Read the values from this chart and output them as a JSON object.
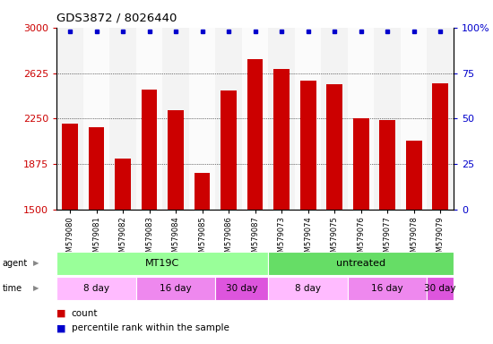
{
  "title": "GDS3872 / 8026440",
  "samples": [
    "GSM579080",
    "GSM579081",
    "GSM579082",
    "GSM579083",
    "GSM579084",
    "GSM579085",
    "GSM579086",
    "GSM579087",
    "GSM579073",
    "GSM579074",
    "GSM579075",
    "GSM579076",
    "GSM579077",
    "GSM579078",
    "GSM579079"
  ],
  "bar_values": [
    2210,
    2175,
    1920,
    2490,
    2320,
    1800,
    2480,
    2740,
    2660,
    2560,
    2530,
    2250,
    2240,
    2070,
    2540
  ],
  "ylim": [
    1500,
    3000
  ],
  "yticks": [
    1500,
    1875,
    2250,
    2625,
    3000
  ],
  "y2lim": [
    0,
    100
  ],
  "y2ticks": [
    0,
    25,
    50,
    75,
    100
  ],
  "bar_color": "#cc0000",
  "dot_color": "#0000cc",
  "bar_width": 0.6,
  "agents": [
    {
      "label": "MT19C",
      "start": 0,
      "end": 8,
      "color": "#99ff99"
    },
    {
      "label": "untreated",
      "start": 8,
      "end": 15,
      "color": "#66dd66"
    }
  ],
  "times": [
    {
      "label": "8 day",
      "start": 0,
      "end": 3,
      "color": "#ffbbff"
    },
    {
      "label": "16 day",
      "start": 3,
      "end": 6,
      "color": "#ee88ee"
    },
    {
      "label": "30 day",
      "start": 6,
      "end": 8,
      "color": "#dd55dd"
    },
    {
      "label": "8 day",
      "start": 8,
      "end": 11,
      "color": "#ffbbff"
    },
    {
      "label": "16 day",
      "start": 11,
      "end": 14,
      "color": "#ee88ee"
    },
    {
      "label": "30 day",
      "start": 14,
      "end": 15,
      "color": "#dd55dd"
    }
  ],
  "tick_color_left": "#cc0000",
  "tick_color_right": "#0000cc",
  "col_bg_even": "#e8e8e8",
  "col_bg_odd": "#f8f8f8"
}
